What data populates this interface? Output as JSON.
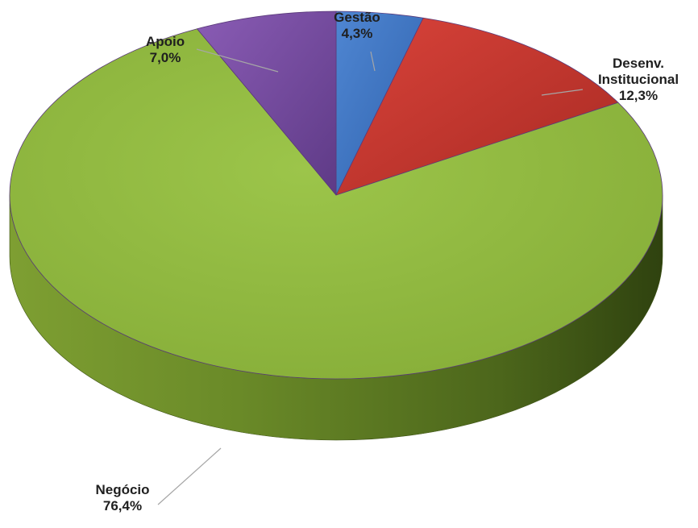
{
  "chart_data": {
    "type": "pie",
    "title": "",
    "slices": [
      {
        "label": "Gestão",
        "label_lines": [
          "Gestão"
        ],
        "value": 4.3,
        "display": "4,3%",
        "color": "#4472C4"
      },
      {
        "label": "Desenv. Institucional",
        "label_lines": [
          "Desenv.",
          "Institucional"
        ],
        "value": 12.3,
        "display": "12,3%",
        "color": "#C0392B"
      },
      {
        "label": "Negócio",
        "label_lines": [
          "Negócio"
        ],
        "value": 76.4,
        "display": "76,4%",
        "color": "#8DB43E"
      },
      {
        "label": "Apoio",
        "label_lines": [
          "Apoio"
        ],
        "value": 7.0,
        "display": "7,0%",
        "color": "#7B4FA0"
      }
    ],
    "start_angle_deg": 0,
    "direction": "clockwise",
    "style": "3d",
    "legend": "none"
  }
}
